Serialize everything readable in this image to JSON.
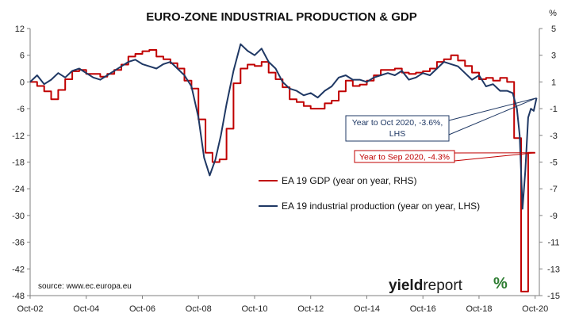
{
  "chart_data": {
    "type": "line",
    "title": "EURO-ZONE INDUSTRIAL PRODUCTION & GDP",
    "right_axis_unit": "%",
    "x_tick_labels": [
      "Oct-02",
      "Oct-04",
      "Oct-06",
      "Oct-08",
      "Oct-10",
      "Oct-12",
      "Oct-14",
      "Oct-16",
      "Oct-18",
      "Oct-20"
    ],
    "x_range": [
      2002.75,
      2020.9
    ],
    "left_axis": {
      "ticks": [
        12,
        6,
        0,
        -6,
        -12,
        -18,
        -24,
        -30,
        -36,
        -42,
        -48
      ],
      "ylim": [
        -48,
        12
      ]
    },
    "right_axis": {
      "ticks": [
        5,
        3,
        1,
        -1,
        -3,
        -5,
        -7,
        -9,
        -11,
        -13,
        -15
      ],
      "ylim": [
        -15,
        5
      ]
    },
    "series": [
      {
        "name": "EA 19 GDP (year on year, RHS)",
        "axis": "right",
        "color": "#c00000",
        "step": true,
        "x": [
          2002.75,
          2003.0,
          2003.25,
          2003.5,
          2003.75,
          2004.0,
          2004.25,
          2004.5,
          2004.75,
          2005.0,
          2005.25,
          2005.5,
          2005.75,
          2006.0,
          2006.25,
          2006.5,
          2006.75,
          2007.0,
          2007.25,
          2007.5,
          2007.75,
          2008.0,
          2008.25,
          2008.5,
          2008.75,
          2009.0,
          2009.25,
          2009.5,
          2009.75,
          2010.0,
          2010.25,
          2010.5,
          2010.75,
          2011.0,
          2011.25,
          2011.5,
          2011.75,
          2012.0,
          2012.25,
          2012.5,
          2012.75,
          2013.0,
          2013.25,
          2013.5,
          2013.75,
          2014.0,
          2014.25,
          2014.5,
          2014.75,
          2015.0,
          2015.25,
          2015.5,
          2015.75,
          2016.0,
          2016.25,
          2016.5,
          2016.75,
          2017.0,
          2017.25,
          2017.5,
          2017.75,
          2018.0,
          2018.25,
          2018.5,
          2018.75,
          2019.0,
          2019.25,
          2019.5,
          2019.75,
          2020.0,
          2020.25,
          2020.5,
          2020.75
        ],
        "values": [
          1.0,
          0.7,
          0.3,
          -0.3,
          0.4,
          1.2,
          1.8,
          1.9,
          1.6,
          1.6,
          1.4,
          1.6,
          1.9,
          2.3,
          2.9,
          3.1,
          3.3,
          3.4,
          2.9,
          2.7,
          2.4,
          2.0,
          1.1,
          0.5,
          -1.8,
          -4.3,
          -5.0,
          -4.8,
          -2.5,
          0.9,
          2.0,
          2.3,
          2.2,
          2.5,
          1.7,
          1.2,
          0.6,
          -0.3,
          -0.5,
          -0.8,
          -1.0,
          -1.0,
          -0.6,
          -0.4,
          0.3,
          1.1,
          0.7,
          0.8,
          1.1,
          1.5,
          1.9,
          1.9,
          2.0,
          1.7,
          1.6,
          1.7,
          1.8,
          2.0,
          2.5,
          2.7,
          3.0,
          2.6,
          2.2,
          1.7,
          1.2,
          1.3,
          1.1,
          1.3,
          1.0,
          -3.2,
          -14.7,
          -4.3,
          -4.3
        ]
      },
      {
        "name": "EA 19 industrial production (year on year, LHS)",
        "axis": "left",
        "color": "#1f3864",
        "step": false,
        "x": [
          2002.75,
          2003.0,
          2003.25,
          2003.5,
          2003.75,
          2004.0,
          2004.25,
          2004.5,
          2004.75,
          2005.0,
          2005.25,
          2005.5,
          2005.75,
          2006.0,
          2006.25,
          2006.5,
          2006.75,
          2007.0,
          2007.25,
          2007.5,
          2007.75,
          2008.0,
          2008.25,
          2008.5,
          2008.75,
          2008.95,
          2009.15,
          2009.35,
          2009.55,
          2009.75,
          2010.0,
          2010.25,
          2010.5,
          2010.75,
          2011.0,
          2011.25,
          2011.5,
          2011.75,
          2012.0,
          2012.25,
          2012.5,
          2012.75,
          2013.0,
          2013.25,
          2013.5,
          2013.75,
          2014.0,
          2014.25,
          2014.5,
          2014.75,
          2015.0,
          2015.25,
          2015.5,
          2015.75,
          2016.0,
          2016.25,
          2016.5,
          2016.75,
          2017.0,
          2017.25,
          2017.5,
          2017.75,
          2018.0,
          2018.25,
          2018.5,
          2018.75,
          2019.0,
          2019.25,
          2019.5,
          2019.75,
          2019.95,
          2020.1,
          2020.2,
          2020.3,
          2020.4,
          2020.5,
          2020.6,
          2020.7,
          2020.8
        ],
        "values": [
          0.0,
          1.5,
          -0.5,
          0.5,
          2.0,
          1.0,
          2.5,
          3.0,
          2.0,
          1.0,
          0.5,
          1.5,
          2.5,
          3.5,
          4.5,
          5.0,
          4.0,
          3.5,
          3.0,
          4.0,
          4.5,
          3.0,
          1.5,
          -1.0,
          -8.0,
          -17.0,
          -21.0,
          -17.5,
          -12.0,
          -5.0,
          2.5,
          8.5,
          7.0,
          6.0,
          7.5,
          4.5,
          3.0,
          0.0,
          -1.5,
          -2.0,
          -3.0,
          -2.5,
          -3.5,
          -2.0,
          -1.0,
          1.0,
          1.5,
          0.5,
          0.5,
          0.0,
          1.0,
          1.5,
          2.0,
          1.5,
          2.5,
          0.5,
          1.0,
          2.0,
          1.5,
          3.0,
          4.5,
          4.0,
          3.5,
          2.0,
          0.5,
          1.5,
          -1.0,
          -0.5,
          -2.0,
          -2.0,
          -2.5,
          -6.0,
          -12.0,
          -28.5,
          -20.0,
          -8.0,
          -6.0,
          -6.5,
          -3.6
        ]
      }
    ],
    "annotations": [
      {
        "text_line1": "Year to Oct 2020, -3.6%,",
        "text_line2": "LHS"
      },
      {
        "text": "Year to Sep 2020, -4.3%"
      }
    ],
    "source": "source: www.ec.europa.eu",
    "grid": false,
    "legend_position": "center"
  },
  "brand": {
    "part1": "yield",
    "part2": "report",
    "symbol": "%"
  }
}
